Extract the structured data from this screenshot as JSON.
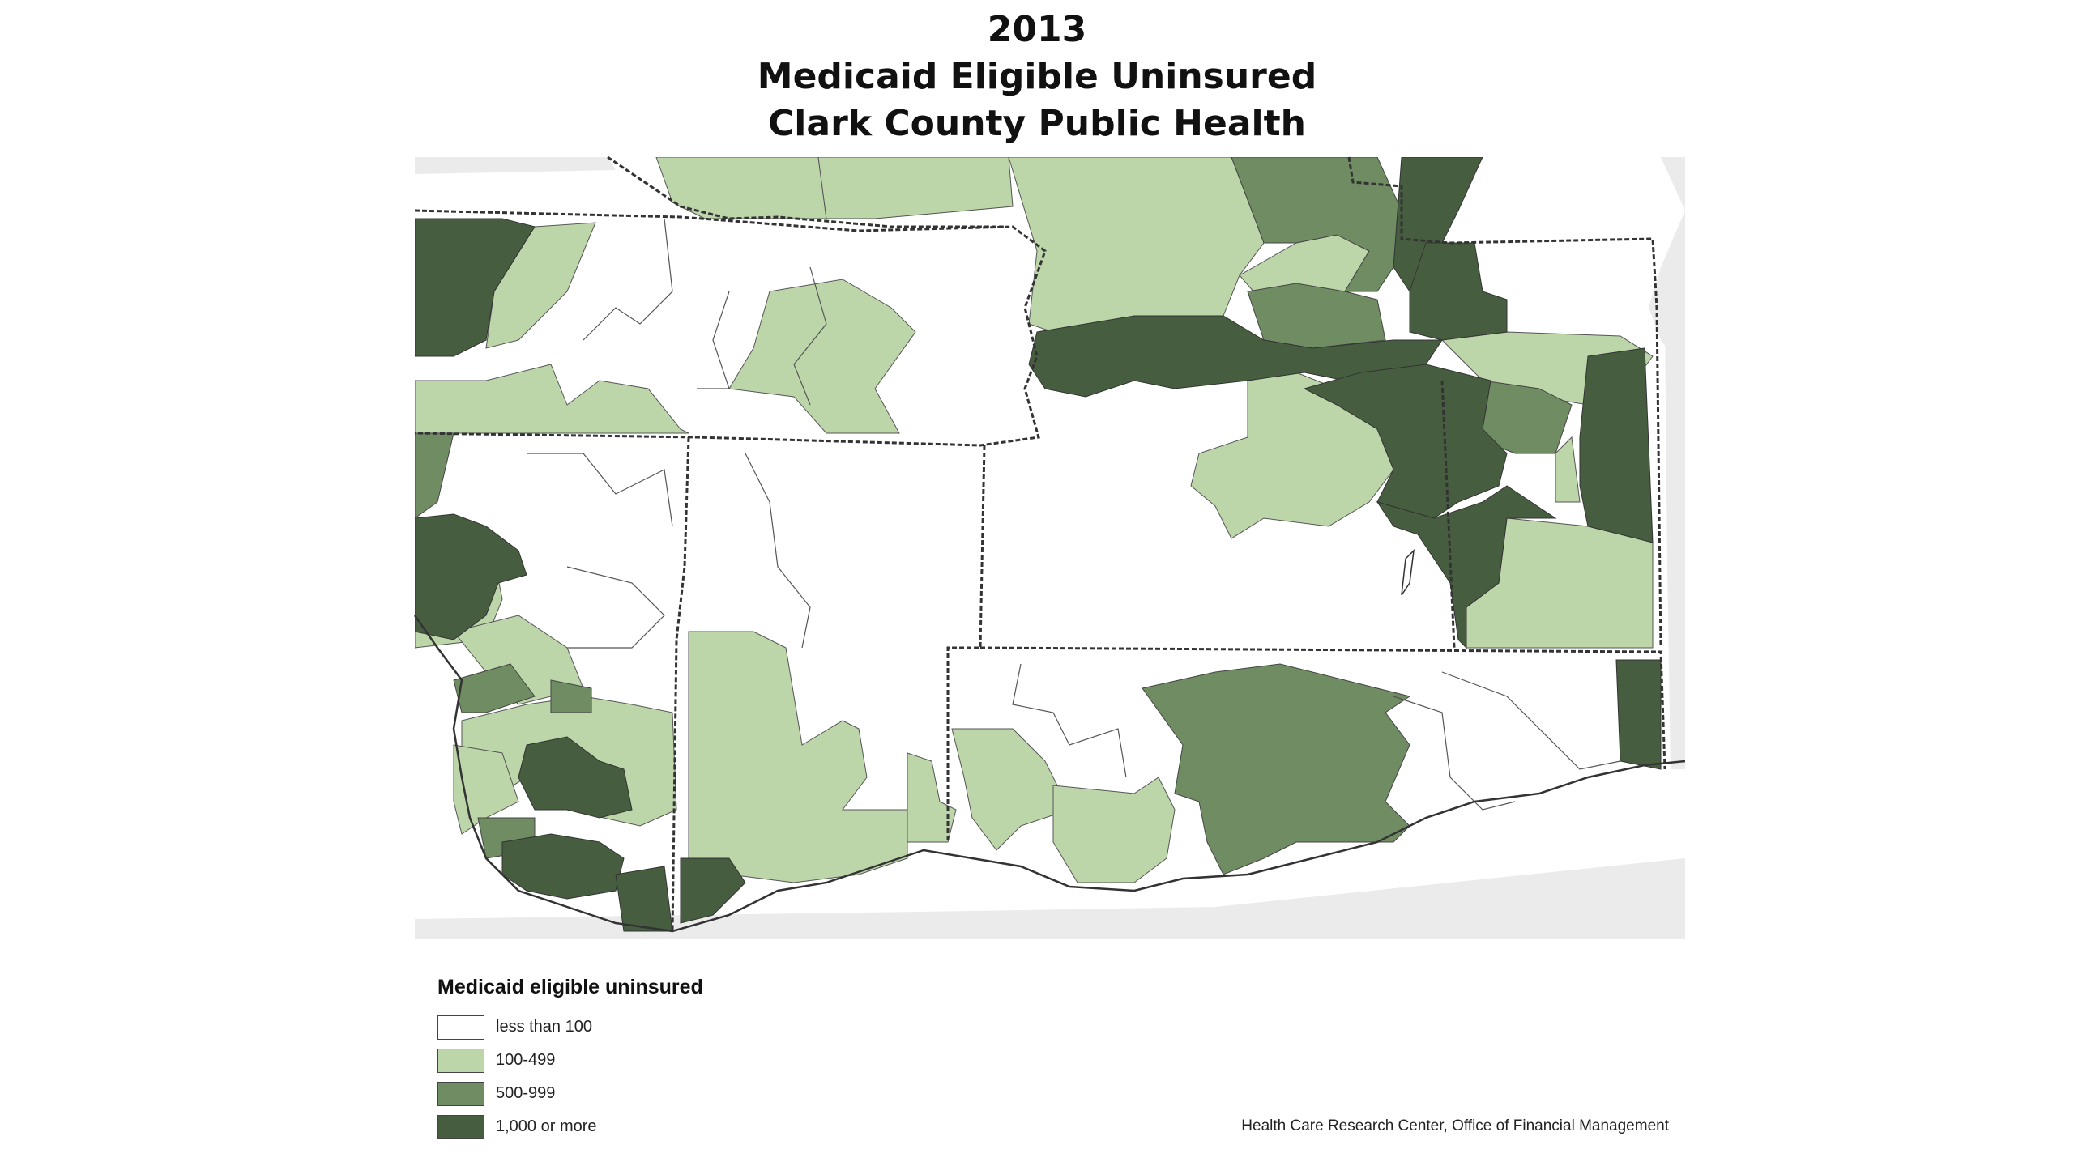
{
  "title": {
    "line1": "2013",
    "line2": "Medicaid Eligible Uninsured",
    "line3": "Clark County Public Health"
  },
  "legend": {
    "title": "Medicaid eligible uninsured",
    "items": [
      {
        "label": "less than 100",
        "color": "#ffffff"
      },
      {
        "label": "100-499",
        "color": "#bcd6aa"
      },
      {
        "label": "500-999",
        "color": "#6f8c63"
      },
      {
        "label": "1,000 or more",
        "color": "#465e3f"
      }
    ]
  },
  "credit": "Health Care Research Center, Office of Financial Management",
  "colors": {
    "outside_area": "#ebebeb",
    "boundary": "#333333"
  }
}
